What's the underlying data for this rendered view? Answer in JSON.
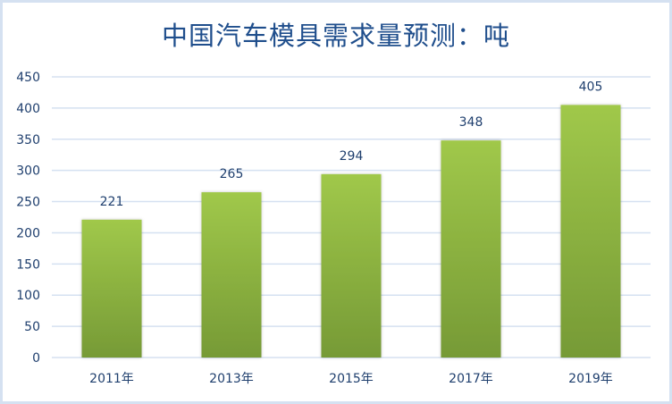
{
  "chart_data": {
    "type": "bar",
    "title": "中国汽车模具需求量预测：吨",
    "categories": [
      "2011年",
      "2013年",
      "2015年",
      "2017年",
      "2019年"
    ],
    "values": [
      221,
      265,
      294,
      348,
      405
    ],
    "xlabel": "",
    "ylabel": "",
    "ylim": [
      0,
      450
    ],
    "yticks": [
      0,
      50,
      100,
      150,
      200,
      250,
      300,
      350,
      400,
      450
    ],
    "grid": true,
    "data_labels": true,
    "colors": {
      "bar_top": "#a0c84a",
      "bar_bottom": "#769a36",
      "grid": "#d5e1f1",
      "text": "#1f3f6e",
      "title": "#1f4e8c"
    }
  }
}
